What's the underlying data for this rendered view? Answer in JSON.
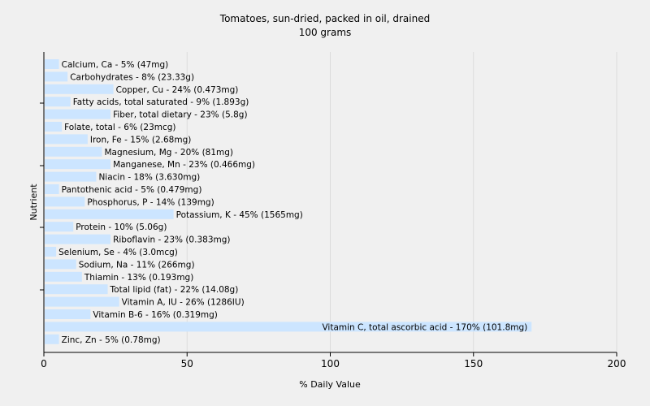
{
  "chart_data": {
    "type": "bar",
    "orientation": "horizontal",
    "title": "Tomatoes, sun-dried, packed in oil, drained",
    "subtitle": "100 grams",
    "xlabel": "% Daily Value",
    "ylabel": "Nutrient",
    "xlim": [
      0,
      200
    ],
    "xticks": [
      "0",
      "50",
      "100",
      "150",
      "200"
    ],
    "grid": true,
    "bar_color": "#cce5ff",
    "categories": [
      "Calcium, Ca - 5% (47mg)",
      "Carbohydrates - 8% (23.33g)",
      "Copper, Cu - 24% (0.473mg)",
      "Fatty acids, total saturated - 9% (1.893g)",
      "Fiber, total dietary - 23% (5.8g)",
      "Folate, total - 6% (23mcg)",
      "Iron, Fe - 15% (2.68mg)",
      "Magnesium, Mg - 20% (81mg)",
      "Manganese, Mn - 23% (0.466mg)",
      "Niacin - 18% (3.630mg)",
      "Pantothenic acid - 5% (0.479mg)",
      "Phosphorus, P - 14% (139mg)",
      "Potassium, K - 45% (1565mg)",
      "Protein - 10% (5.06g)",
      "Riboflavin - 23% (0.383mg)",
      "Selenium, Se - 4% (3.0mcg)",
      "Sodium, Na - 11% (266mg)",
      "Thiamin - 13% (0.193mg)",
      "Total lipid (fat) - 22% (14.08g)",
      "Vitamin A, IU - 26% (1286IU)",
      "Vitamin B-6 - 16% (0.319mg)",
      "Vitamin C, total ascorbic acid - 170% (101.8mg)",
      "Zinc, Zn - 5% (0.78mg)"
    ],
    "values": [
      5,
      8,
      24,
      9,
      23,
      6,
      15,
      20,
      23,
      18,
      5,
      14,
      45,
      10,
      23,
      4,
      11,
      13,
      22,
      26,
      16,
      170,
      5
    ]
  }
}
